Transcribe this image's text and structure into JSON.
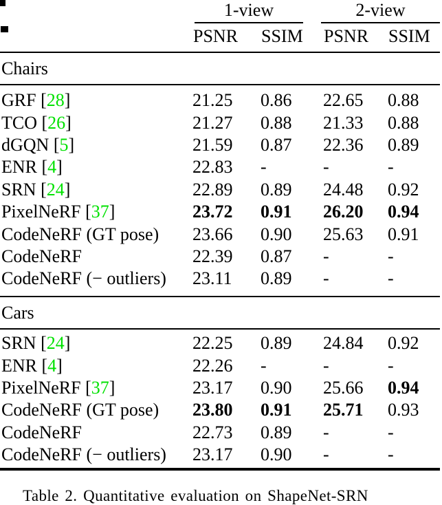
{
  "header": {
    "groups": [
      {
        "label": "1-view"
      },
      {
        "label": "2-view"
      }
    ],
    "metrics": [
      "PSNR",
      "SSIM",
      "PSNR",
      "SSIM"
    ]
  },
  "sections": [
    {
      "title": "Chairs",
      "rows": [
        {
          "method": "GRF",
          "cite": "28",
          "vals": [
            "21.25",
            "0.86",
            "22.65",
            "0.88"
          ],
          "bold": [
            false,
            false,
            false,
            false
          ]
        },
        {
          "method": "TCO",
          "cite": "26",
          "vals": [
            "21.27",
            "0.88",
            "21.33",
            "0.88"
          ],
          "bold": [
            false,
            false,
            false,
            false
          ]
        },
        {
          "method": "dGQN",
          "cite": "5",
          "vals": [
            "21.59",
            "0.87",
            "22.36",
            "0.89"
          ],
          "bold": [
            false,
            false,
            false,
            false
          ]
        },
        {
          "method": "ENR",
          "cite": "4",
          "vals": [
            "22.83",
            "-",
            "-",
            "-"
          ],
          "bold": [
            false,
            false,
            false,
            false
          ]
        },
        {
          "method": "SRN",
          "cite": "24",
          "vals": [
            "22.89",
            "0.89",
            "24.48",
            "0.92"
          ],
          "bold": [
            false,
            false,
            false,
            false
          ]
        },
        {
          "method": "PixelNeRF",
          "cite": "37",
          "vals": [
            "23.72",
            "0.91",
            "26.20",
            "0.94"
          ],
          "bold": [
            true,
            true,
            true,
            true
          ]
        },
        {
          "method": "CodeNeRF (GT pose)",
          "cite": null,
          "vals": [
            "23.66",
            "0.90",
            "25.63",
            "0.91"
          ],
          "bold": [
            false,
            false,
            false,
            false
          ]
        },
        {
          "method": "CodeNeRF",
          "cite": null,
          "vals": [
            "22.39",
            "0.87",
            "-",
            "-"
          ],
          "bold": [
            false,
            false,
            false,
            false
          ]
        },
        {
          "method": "CodeNeRF (− outliers)",
          "cite": null,
          "vals": [
            "23.11",
            "0.89",
            "-",
            "-"
          ],
          "bold": [
            false,
            false,
            false,
            false
          ]
        }
      ]
    },
    {
      "title": "Cars",
      "rows": [
        {
          "method": "SRN",
          "cite": "24",
          "vals": [
            "22.25",
            "0.89",
            "24.84",
            "0.92"
          ],
          "bold": [
            false,
            false,
            false,
            false
          ]
        },
        {
          "method": "ENR",
          "cite": "4",
          "vals": [
            "22.26",
            "-",
            "-",
            "-"
          ],
          "bold": [
            false,
            false,
            false,
            false
          ]
        },
        {
          "method": "PixelNeRF",
          "cite": "37",
          "vals": [
            "23.17",
            "0.90",
            "25.66",
            "0.94"
          ],
          "bold": [
            false,
            false,
            false,
            true
          ]
        },
        {
          "method": "CodeNeRF (GT pose)",
          "cite": null,
          "vals": [
            "23.80",
            "0.91",
            "25.71",
            "0.93"
          ],
          "bold": [
            true,
            true,
            true,
            false
          ]
        },
        {
          "method": "CodeNeRF",
          "cite": null,
          "vals": [
            "22.73",
            "0.89",
            "-",
            "-"
          ],
          "bold": [
            false,
            false,
            false,
            false
          ]
        },
        {
          "method": "CodeNeRF (− outliers)",
          "cite": null,
          "vals": [
            "23.17",
            "0.90",
            "-",
            "-"
          ],
          "bold": [
            false,
            false,
            false,
            false
          ]
        }
      ]
    }
  ],
  "caption": "Table 2. Quantitative evaluation on ShapeNet-SRN",
  "colors": {
    "citation": "#00E100",
    "text": "#000000",
    "rule": "#000000"
  }
}
